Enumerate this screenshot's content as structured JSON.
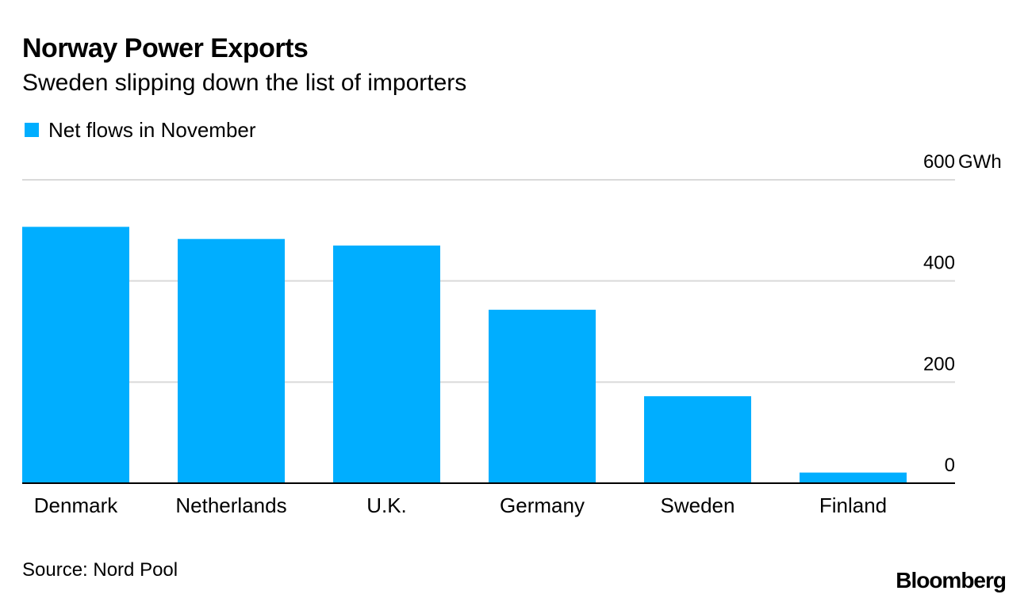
{
  "header": {
    "title": "Norway Power Exports",
    "subtitle": "Sweden slipping down the list of importers"
  },
  "footer": {
    "source": "Source: Nord Pool",
    "brand": "Bloomberg"
  },
  "colors": {
    "bar": "#00aeff",
    "grid": "#d9d9d9",
    "axis": "#000000"
  },
  "chart_data": {
    "type": "bar",
    "title": "Norway Power Exports",
    "subtitle": "Sweden slipping down the list of importers",
    "categories": [
      "Denmark",
      "Netherlands",
      "U.K.",
      "Germany",
      "Sweden",
      "Finland"
    ],
    "series": [
      {
        "name": "Net flows in November",
        "values": [
          507,
          483,
          470,
          343,
          172,
          21
        ]
      }
    ],
    "ylim": [
      0,
      600
    ],
    "yticks": [
      0,
      200,
      400,
      600
    ],
    "ytick_labels": [
      "0",
      "200",
      "400",
      "600"
    ],
    "yunit": "GWh",
    "xlabel": "",
    "ylabel": "",
    "grid": true,
    "legend_position": "top-left",
    "axis_position": "right"
  }
}
